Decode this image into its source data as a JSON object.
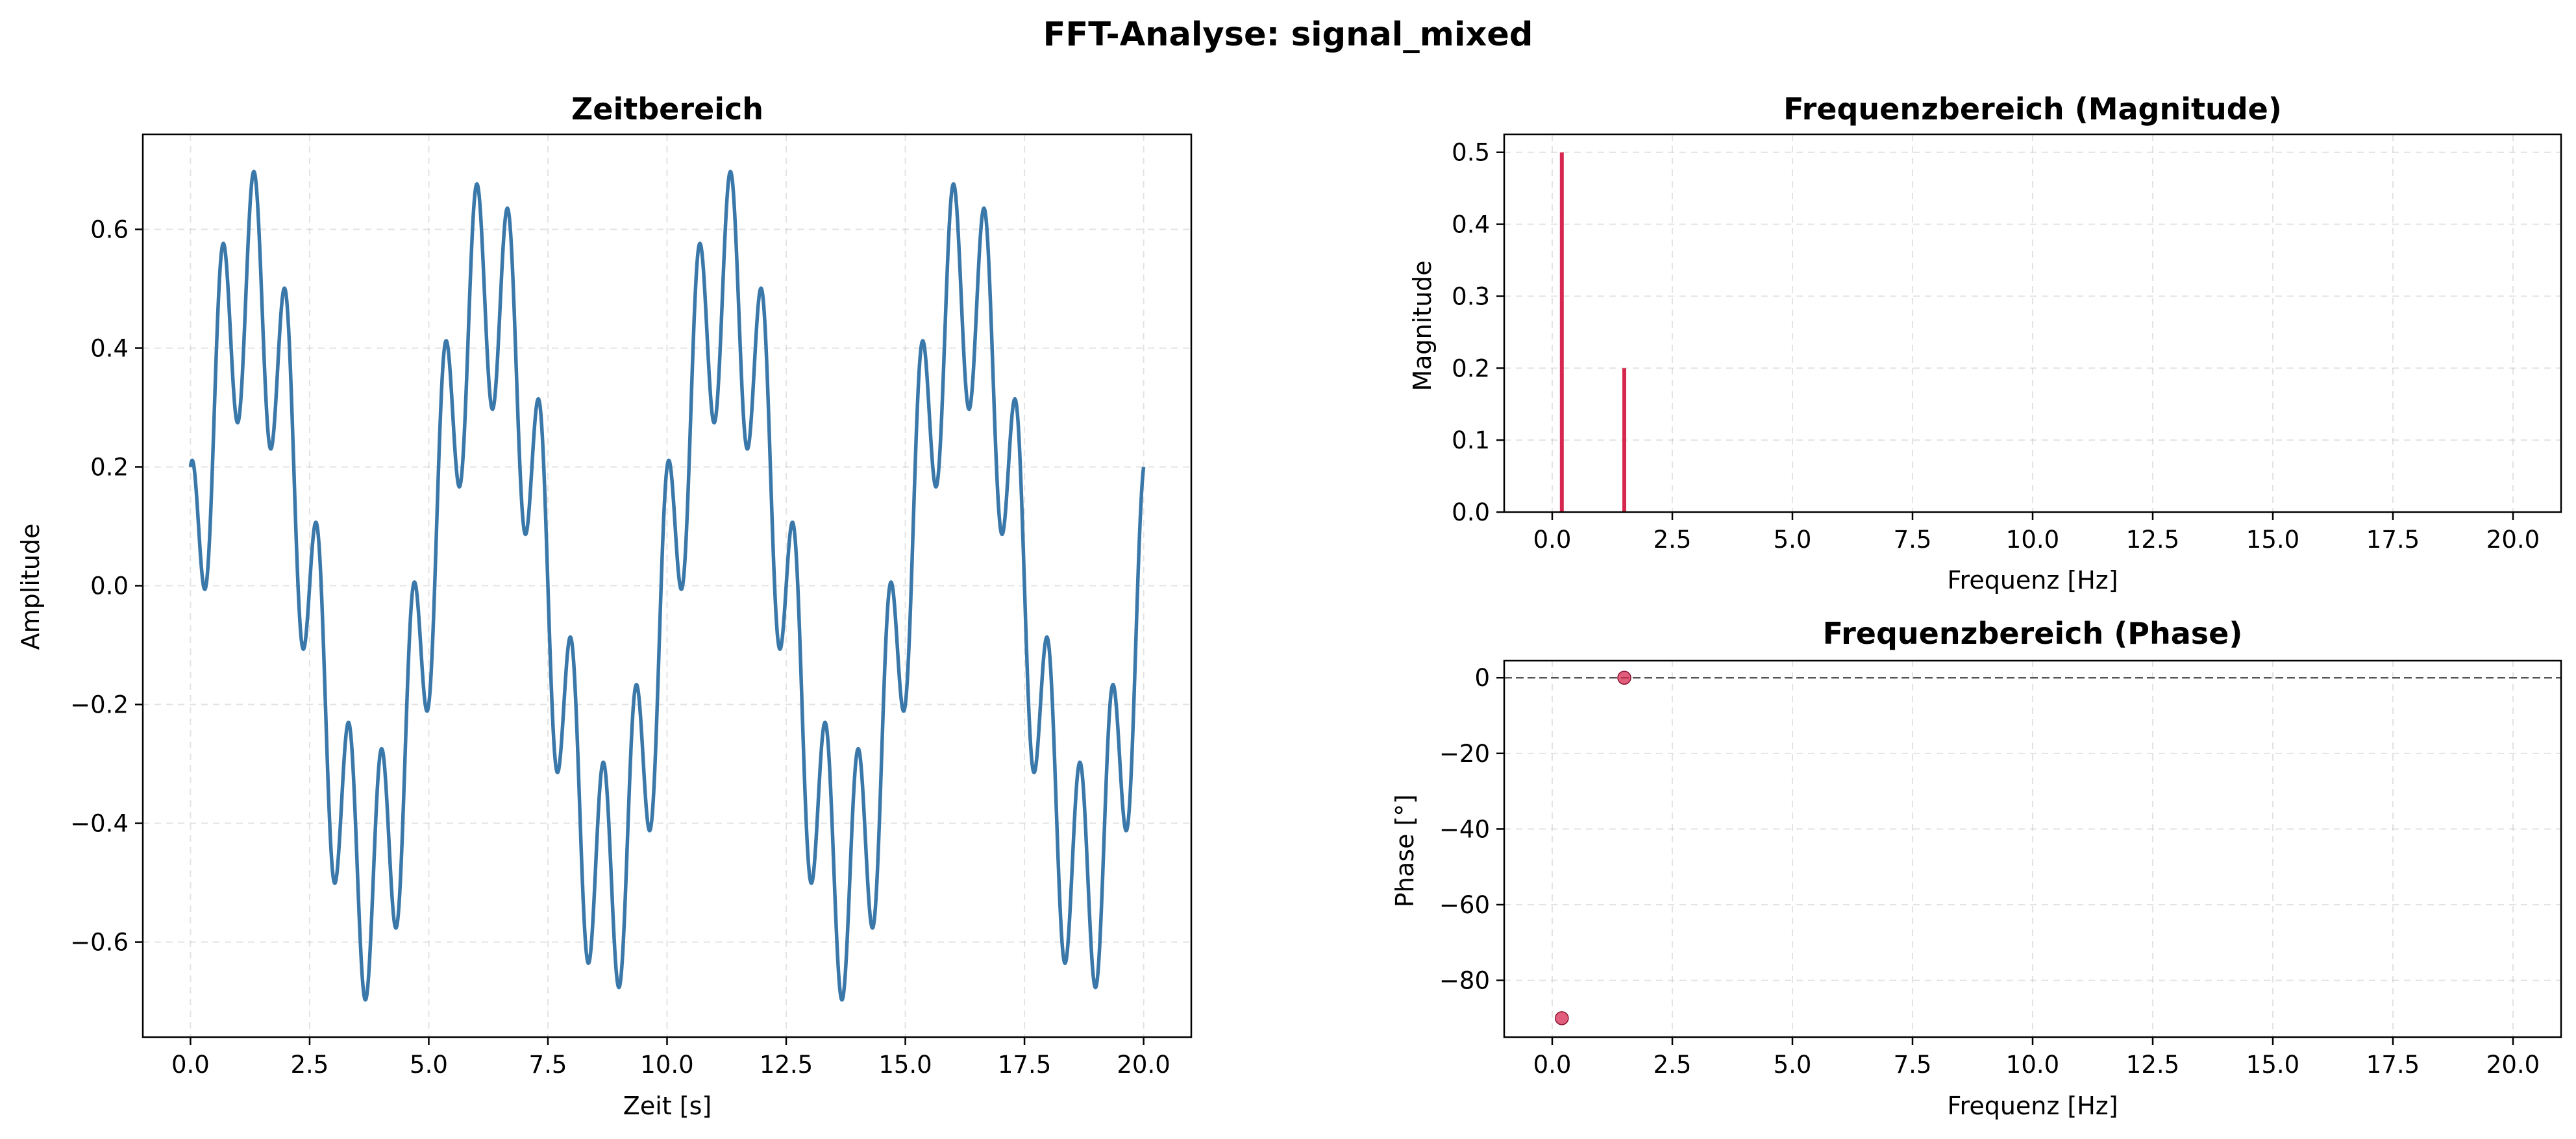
{
  "figure": {
    "title": "FFT-Analyse: signal_mixed"
  },
  "colors": {
    "signal": "#3b78aa",
    "spectrum": "#d6284f",
    "zero_line": "#555555"
  },
  "chart_data": [
    {
      "id": "time",
      "type": "line",
      "title": "Zeitbereich",
      "xlabel": "Zeit [s]",
      "ylabel": "Amplitude",
      "xlim": [
        -1.0,
        21.0
      ],
      "ylim": [
        -0.76,
        0.76
      ],
      "xticks": [
        0.0,
        2.5,
        5.0,
        7.5,
        10.0,
        12.5,
        15.0,
        17.5,
        20.0
      ],
      "xtick_labels": [
        "0.0",
        "2.5",
        "5.0",
        "7.5",
        "10.0",
        "12.5",
        "15.0",
        "17.5",
        "20.0"
      ],
      "yticks": [
        -0.6,
        -0.4,
        -0.2,
        0.0,
        0.2,
        0.4,
        0.6
      ],
      "ytick_labels": [
        "−0.6",
        "−0.4",
        "−0.2",
        "0.0",
        "0.2",
        "0.4",
        "0.6"
      ],
      "grid": true,
      "series": [
        {
          "x_range": [
            0.0,
            20.0
          ],
          "n_points": 2001,
          "components": [
            {
              "amplitude": 0.5,
              "frequency_hz": 0.2,
              "phase_deg": -90
            },
            {
              "amplitude": 0.2,
              "frequency_hz": 1.5,
              "phase_deg": 0
            }
          ]
        }
      ]
    },
    {
      "id": "magnitude",
      "type": "bar",
      "title": "Frequenzbereich (Magnitude)",
      "xlabel": "Frequenz [Hz]",
      "ylabel": "Magnitude",
      "xlim": [
        -1.0,
        21.0
      ],
      "ylim": [
        0.0,
        0.525
      ],
      "xticks": [
        0.0,
        2.5,
        5.0,
        7.5,
        10.0,
        12.5,
        15.0,
        17.5,
        20.0
      ],
      "xtick_labels": [
        "0.0",
        "2.5",
        "5.0",
        "7.5",
        "10.0",
        "12.5",
        "15.0",
        "17.5",
        "20.0"
      ],
      "yticks": [
        0.0,
        0.1,
        0.2,
        0.3,
        0.4,
        0.5
      ],
      "ytick_labels": [
        "0.0",
        "0.1",
        "0.2",
        "0.3",
        "0.4",
        "0.5"
      ],
      "grid": true,
      "x": [
        0.2,
        1.5
      ],
      "values": [
        0.5,
        0.2
      ]
    },
    {
      "id": "phase",
      "type": "scatter",
      "title": "Frequenzbereich (Phase)",
      "xlabel": "Frequenz [Hz]",
      "ylabel": "Phase [°]",
      "xlim": [
        -1.0,
        21.0
      ],
      "ylim": [
        -95.0,
        4.5
      ],
      "xticks": [
        0.0,
        2.5,
        5.0,
        7.5,
        10.0,
        12.5,
        15.0,
        17.5,
        20.0
      ],
      "xtick_labels": [
        "0.0",
        "2.5",
        "5.0",
        "7.5",
        "10.0",
        "12.5",
        "15.0",
        "17.5",
        "20.0"
      ],
      "yticks": [
        -80,
        -60,
        -40,
        -20,
        0
      ],
      "ytick_labels": [
        "−80",
        "−60",
        "−40",
        "−20",
        "0"
      ],
      "grid": true,
      "reference_line_y": 0,
      "x": [
        0.2,
        1.5
      ],
      "values": [
        -90,
        0
      ]
    }
  ]
}
